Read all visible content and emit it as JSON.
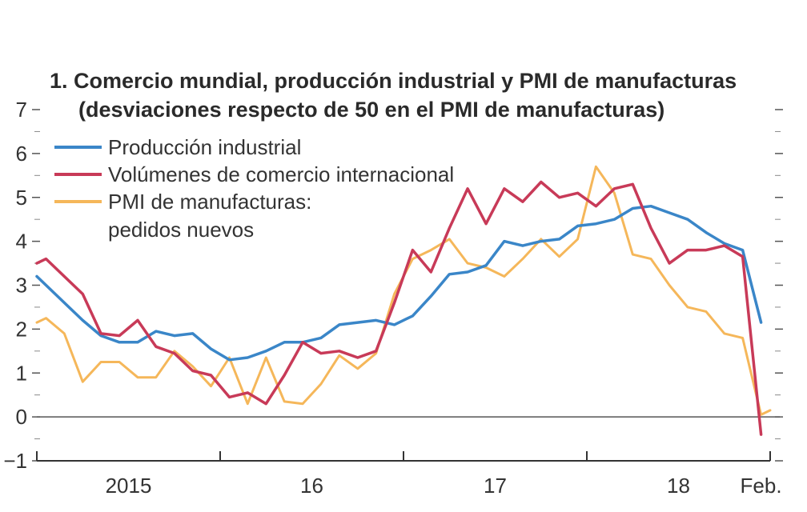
{
  "chart_data": {
    "type": "line",
    "title": "1. Comercio mundial, producción industrial y PMI de manufacturas",
    "subtitle": "(desviaciones respecto de 50 en el PMI de manufacturas)",
    "ylim": [
      -1,
      7
    ],
    "yticks": [
      "−1",
      "0",
      "1",
      "2",
      "3",
      "4",
      "5",
      "6",
      "7"
    ],
    "xlim": [
      0,
      40
    ],
    "x_ticks": [
      {
        "label": "2015",
        "x": 5
      },
      {
        "label": "16",
        "x": 15
      },
      {
        "label": "17",
        "x": 25
      },
      {
        "label": "18",
        "x": 35
      },
      {
        "label": "Feb.",
        "x": 39.5
      }
    ],
    "x_axis_marks": [
      0,
      10,
      20,
      30,
      40
    ],
    "legend": {
      "placement": "top-left",
      "entries": [
        "Producción industrial",
        "Volúmenes de comercio internacional",
        "PMI de manufacturas:",
        "pedidos nuevos"
      ]
    },
    "series": [
      {
        "name": "Producción industrial",
        "color": "#3a86c8",
        "x": [
          0,
          0.5,
          1.5,
          2.5,
          3.5,
          4.5,
          5.5,
          6.5,
          7.5,
          8.5,
          9.5,
          10.5,
          11.5,
          12.5,
          13.5,
          14.5,
          15.5,
          16.5,
          17.5,
          18.5,
          19.5,
          20.5,
          21.5,
          22.5,
          23.5,
          24.5,
          25.5,
          26.5,
          27.5,
          28.5,
          29.5,
          30.5,
          31.5,
          32.5,
          33.5,
          34.5,
          35.5,
          36.5,
          37.5,
          38.5,
          39.5
        ],
        "values": [
          3.2,
          3.0,
          2.6,
          2.2,
          1.85,
          1.7,
          1.7,
          1.95,
          1.85,
          1.9,
          1.55,
          1.3,
          1.35,
          1.5,
          1.7,
          1.7,
          1.8,
          2.1,
          2.15,
          2.2,
          2.1,
          2.3,
          2.75,
          3.25,
          3.3,
          3.45,
          4.0,
          3.9,
          4.0,
          4.05,
          4.35,
          4.4,
          4.5,
          4.75,
          4.8,
          4.65,
          4.5,
          4.2,
          3.95,
          3.8,
          2.15
        ]
      },
      {
        "name": "Volúmenes de comercio internacional",
        "color": "#c83a58",
        "x": [
          0,
          0.5,
          1.5,
          2.5,
          3.5,
          4.5,
          5.5,
          6.5,
          7.5,
          8.5,
          9.5,
          10.5,
          11.5,
          12.5,
          13.5,
          14.5,
          15.5,
          16.5,
          17.5,
          18.5,
          19.5,
          20.5,
          21.5,
          22.5,
          23.5,
          24.5,
          25.5,
          26.5,
          27.5,
          28.5,
          29.5,
          30.5,
          31.5,
          32.5,
          33.5,
          34.5,
          35.5,
          36.5,
          37.5,
          38.5,
          39.5
        ],
        "values": [
          3.5,
          3.6,
          3.2,
          2.8,
          1.9,
          1.85,
          2.2,
          1.6,
          1.45,
          1.05,
          0.95,
          0.45,
          0.55,
          0.3,
          0.95,
          1.7,
          1.45,
          1.5,
          1.35,
          1.5,
          2.6,
          3.8,
          3.3,
          4.3,
          5.2,
          4.4,
          5.2,
          4.9,
          5.35,
          5.0,
          5.1,
          4.8,
          5.2,
          5.3,
          4.3,
          3.5,
          3.8,
          3.8,
          3.9,
          3.65,
          -0.4
        ]
      },
      {
        "name": "PMI de manufacturas: pedidos nuevos",
        "color": "#f5b75a",
        "x": [
          0,
          0.5,
          1.5,
          2.5,
          3.5,
          4.5,
          5.5,
          6.5,
          7.5,
          8.5,
          9.5,
          10.5,
          11.5,
          12.5,
          13.5,
          14.5,
          15.5,
          16.5,
          17.5,
          18.5,
          19.5,
          20.5,
          21.5,
          22.5,
          23.5,
          24.5,
          25.5,
          26.5,
          27.5,
          28.5,
          29.5,
          30.5,
          31.5,
          32.5,
          33.5,
          34.5,
          35.5,
          36.5,
          37.5,
          38.5,
          39.5,
          40
        ],
        "values": [
          2.15,
          2.25,
          1.9,
          0.8,
          1.25,
          1.25,
          0.9,
          0.9,
          1.5,
          1.15,
          0.7,
          1.35,
          0.3,
          1.35,
          0.35,
          0.3,
          0.75,
          1.4,
          1.1,
          1.45,
          2.8,
          3.6,
          3.8,
          4.05,
          3.5,
          3.4,
          3.2,
          3.6,
          4.05,
          3.65,
          4.05,
          5.7,
          5.1,
          3.7,
          3.6,
          3.0,
          2.5,
          2.4,
          1.9,
          1.8,
          0.05,
          0.15
        ]
      }
    ]
  }
}
